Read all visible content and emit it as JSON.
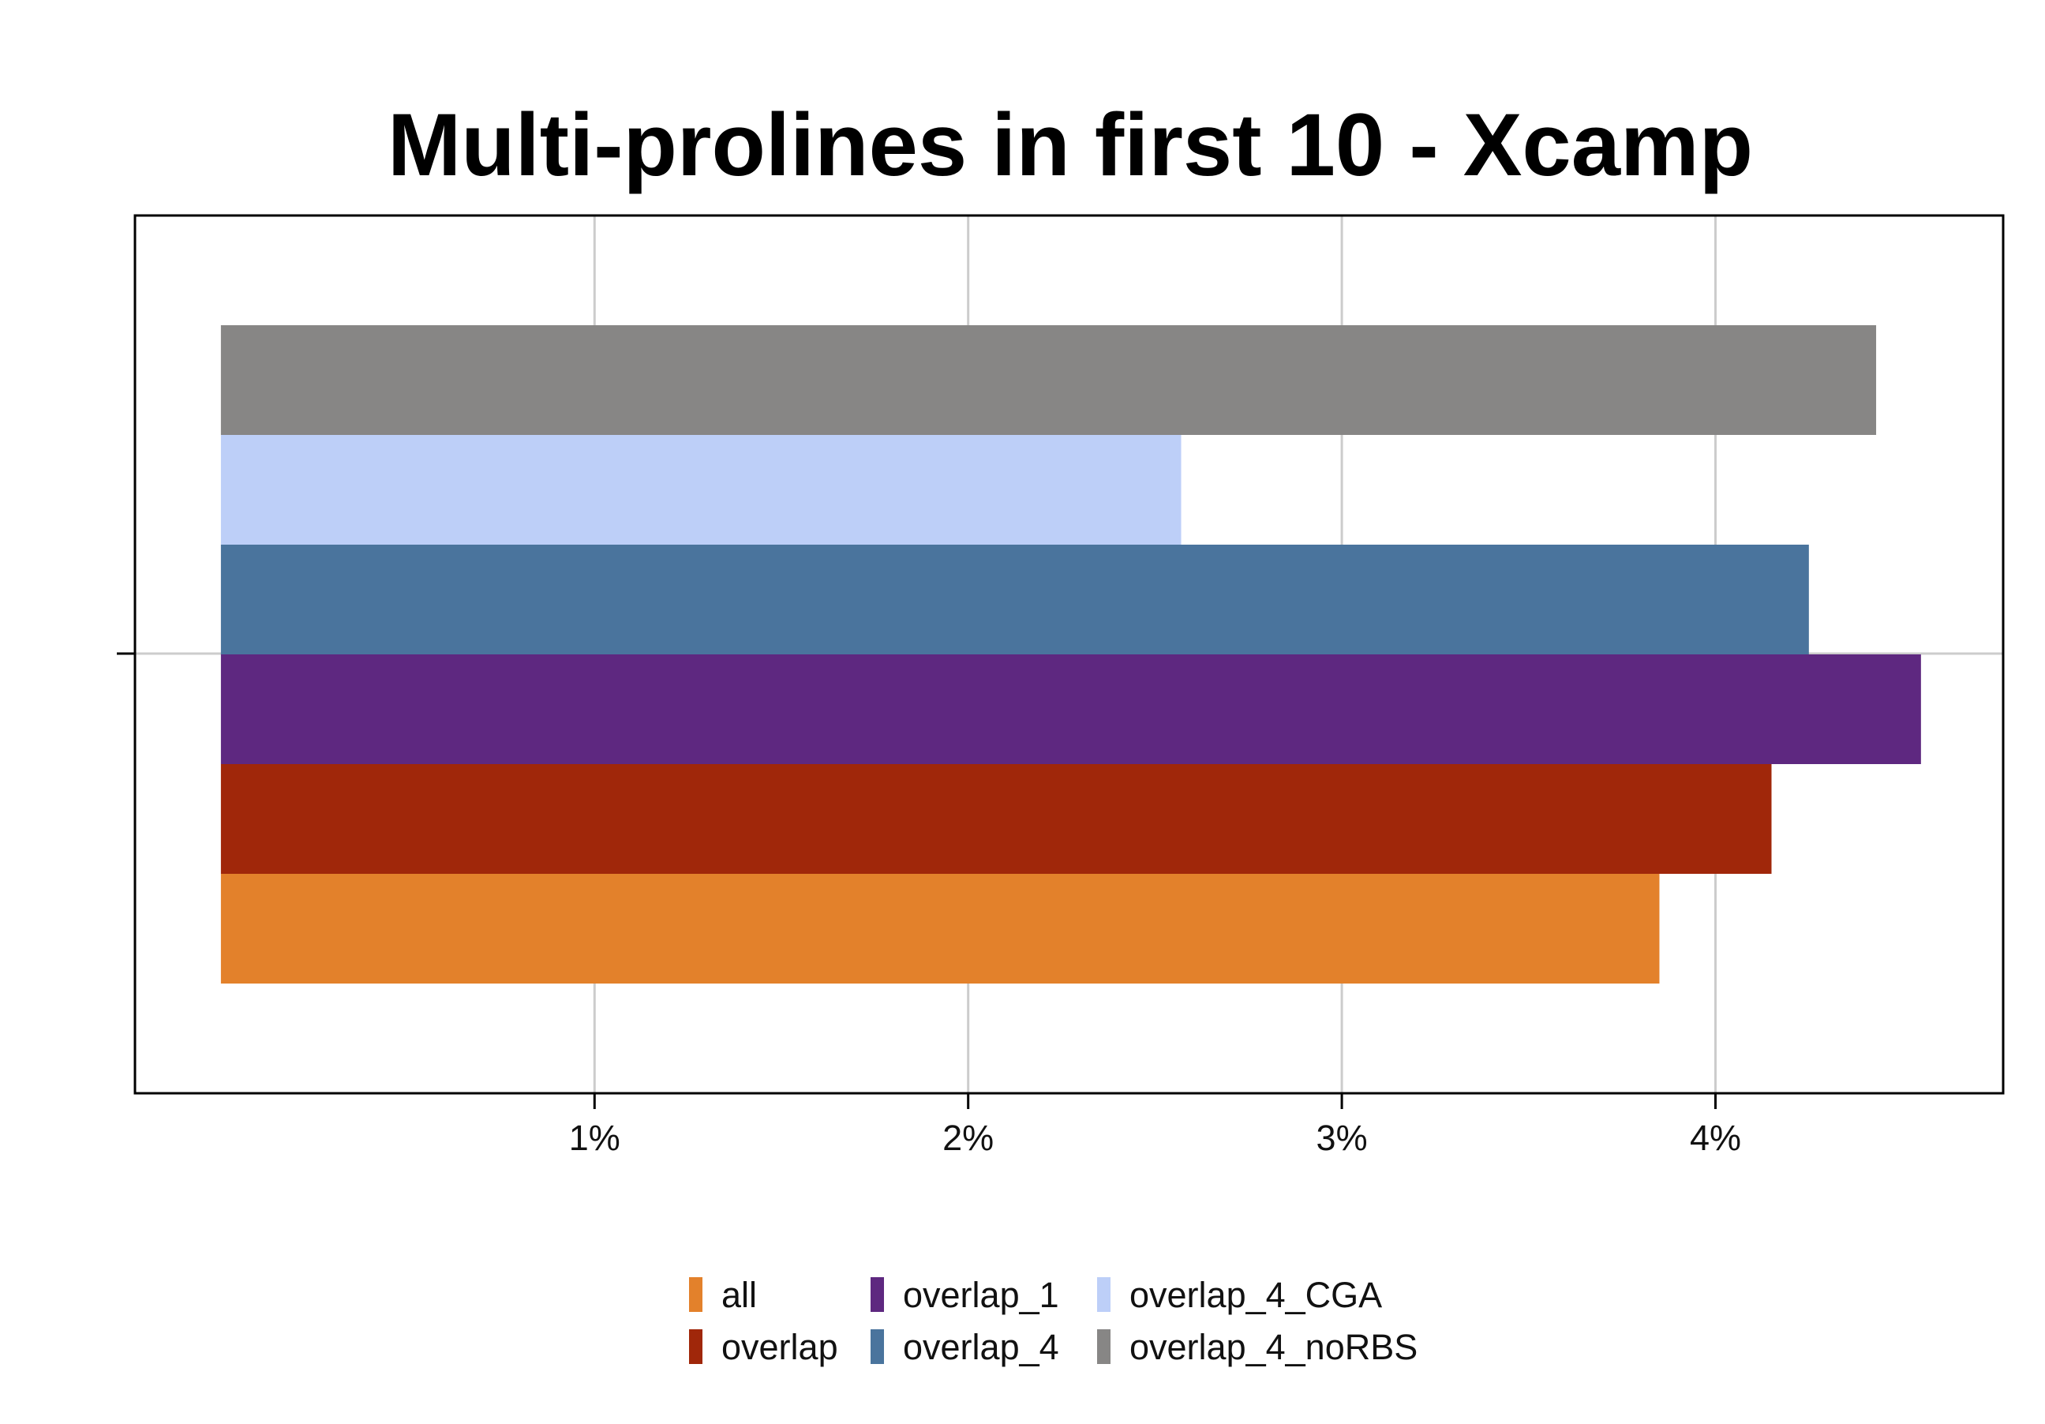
{
  "chart_data": {
    "type": "bar",
    "orientation": "horizontal",
    "title": "Multi-prolines in first 10 - Xcamp",
    "xlabel": "",
    "ylabel": "",
    "xlim": [
      -0.23,
      4.77
    ],
    "x_tick_values": [
      1,
      2,
      3,
      4
    ],
    "x_tick_labels": [
      "1%",
      "2%",
      "3%",
      "4%"
    ],
    "grid": true,
    "legend_position": "bottom",
    "series": [
      {
        "name": "all",
        "value": 3.85,
        "color": "#E3812B"
      },
      {
        "name": "overlap",
        "value": 4.15,
        "color": "#A0270A"
      },
      {
        "name": "overlap_1",
        "value": 4.55,
        "color": "#5E2880"
      },
      {
        "name": "overlap_4",
        "value": 4.25,
        "color": "#4A749D"
      },
      {
        "name": "overlap_4_CGA",
        "value": 2.57,
        "color": "#BDCFF8"
      },
      {
        "name": "overlap_4_noRBS",
        "value": 4.43,
        "color": "#878685"
      }
    ]
  }
}
